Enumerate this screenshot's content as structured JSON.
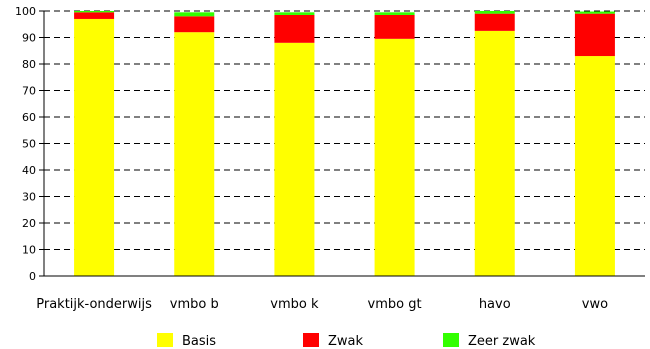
{
  "chart_data": {
    "type": "bar",
    "stacked": true,
    "categories": [
      "Praktijk-onderwijs",
      "vmbo b",
      "vmbo k",
      "vmbo gt",
      "havo",
      "vwo"
    ],
    "series": [
      {
        "name": "Basis",
        "color": "#ffff00",
        "values": [
          97,
          92,
          88,
          89.5,
          92.5,
          83
        ]
      },
      {
        "name": "Zwak",
        "color": "#ff0000",
        "values": [
          2.5,
          6,
          10.5,
          9,
          6.5,
          16
        ]
      },
      {
        "name": "Zeer zwak",
        "color": "#33ff00",
        "values": [
          0.5,
          1.5,
          1,
          1,
          1,
          0.8
        ]
      }
    ],
    "ylim": [
      0,
      100
    ],
    "yticks": [
      0,
      10,
      20,
      30,
      40,
      50,
      60,
      70,
      80,
      90,
      100
    ],
    "grid": "horizontal-dashed",
    "legend": "bottom"
  }
}
